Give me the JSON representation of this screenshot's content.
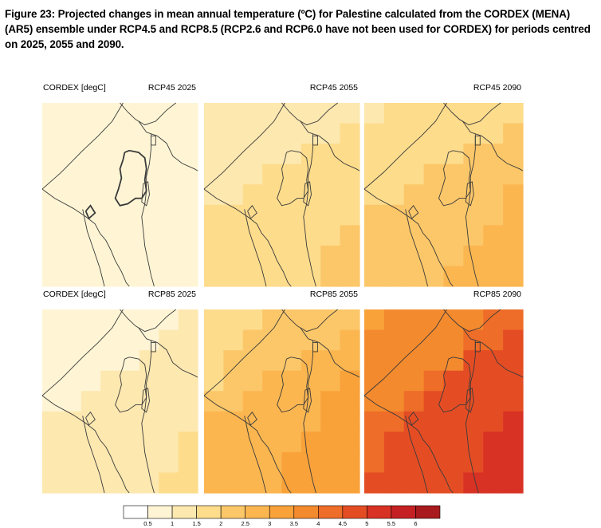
{
  "caption": "Figure 23: Projected changes in mean annual temperature (ºC) for Palestine calculated from the CORDEX (MENA) (AR5) ensemble under RCP4.5 and RCP8.5 (RCP2.6 and RCP6.0 have not been used for CORDEX) for periods centred on 2025, 2055 and 2090.",
  "panels": [
    {
      "dataset": "CORDEX [degC]",
      "title": "RCP45 2025",
      "base": 0.8,
      "gradient": 0.1
    },
    {
      "dataset": "",
      "title": "RCP45 2055",
      "base": 1.35,
      "gradient": 0.5
    },
    {
      "dataset": "",
      "title": "RCP45 2090",
      "base": 1.8,
      "gradient": 0.6
    },
    {
      "dataset": "CORDEX [degC]",
      "title": "RCP85 2025",
      "base": 0.9,
      "gradient": 0.45
    },
    {
      "dataset": "",
      "title": "RCP85 2055",
      "base": 2.2,
      "gradient": 0.75
    },
    {
      "dataset": "",
      "title": "RCP85 2090",
      "base": 3.9,
      "gradient": 0.9
    }
  ],
  "colorbar": {
    "ticks": [
      "0.5",
      "1",
      "1.5",
      "2",
      "2.5",
      "3",
      "3.5",
      "4",
      "4.5",
      "5",
      "5.5",
      "6"
    ],
    "colors": [
      "#ffffff",
      "#fff5d5",
      "#fde8b0",
      "#fddc8c",
      "#fcc769",
      "#fbb650",
      "#f9a23a",
      "#f48a2e",
      "#ee6d28",
      "#e44d24",
      "#d83224",
      "#c52023",
      "#a81a1d"
    ]
  }
}
